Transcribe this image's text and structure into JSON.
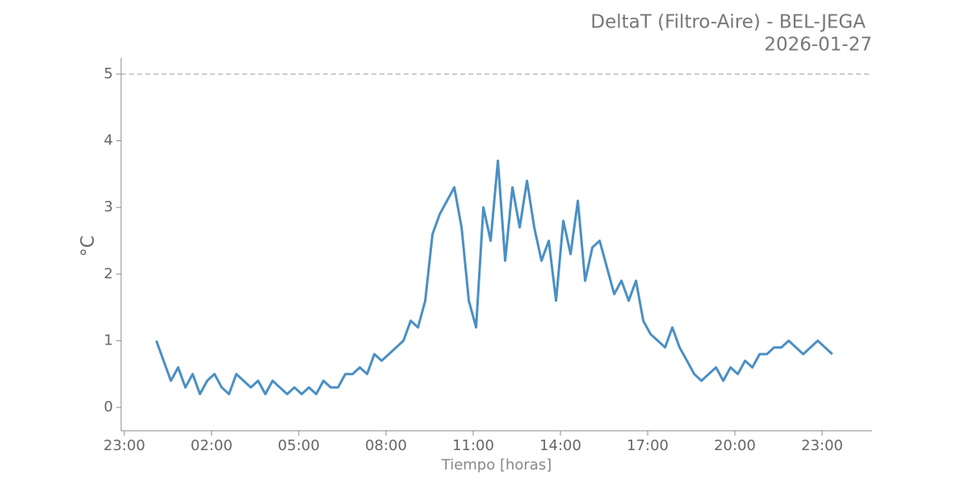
{
  "chart_data": {
    "type": "line",
    "title": "DeltaT (Filtro-Aire) - BEL-JEGA",
    "subtitle": "2026-01-27",
    "x_label": "Tiempo [horas]",
    "y_label": "°C",
    "color": "#4a8fc4",
    "reference_line": 5,
    "reference_color": "#bbbbbb",
    "x": [
      0.1,
      0.35,
      0.6,
      0.85,
      1.1,
      1.35,
      1.6,
      1.85,
      2.1,
      2.35,
      2.6,
      2.85,
      3.1,
      3.35,
      3.6,
      3.85,
      4.1,
      4.35,
      4.6,
      4.85,
      5.1,
      5.35,
      5.6,
      5.85,
      6.1,
      6.35,
      6.6,
      6.85,
      7.1,
      7.35,
      7.6,
      7.85,
      8.1,
      8.35,
      8.6,
      8.85,
      9.1,
      9.35,
      9.6,
      9.85,
      10.1,
      10.35,
      10.6,
      10.85,
      11.1,
      11.35,
      11.6,
      11.85,
      12.1,
      12.35,
      12.6,
      12.85,
      13.1,
      13.35,
      13.6,
      13.85,
      14.1,
      14.35,
      14.6,
      14.85,
      15.1,
      15.35,
      15.6,
      15.85,
      16.1,
      16.35,
      16.6,
      16.85,
      17.1,
      17.35,
      17.6,
      17.85,
      18.1,
      18.35,
      18.6,
      18.85,
      19.1,
      19.35,
      19.6,
      19.85,
      20.1,
      20.35,
      20.6,
      20.85,
      21.1,
      21.35,
      21.6,
      21.85,
      22.1,
      22.35,
      22.6,
      22.85,
      23.1,
      23.35
    ],
    "values": [
      1.0,
      0.7,
      0.4,
      0.6,
      0.3,
      0.5,
      0.2,
      0.4,
      0.5,
      0.3,
      0.2,
      0.5,
      0.4,
      0.3,
      0.4,
      0.2,
      0.4,
      0.3,
      0.2,
      0.3,
      0.2,
      0.3,
      0.2,
      0.4,
      0.3,
      0.3,
      0.5,
      0.5,
      0.6,
      0.5,
      0.8,
      0.7,
      0.8,
      0.9,
      1.0,
      1.3,
      1.2,
      1.6,
      2.6,
      2.9,
      3.1,
      3.3,
      2.7,
      1.6,
      1.2,
      3.0,
      2.5,
      3.7,
      2.2,
      3.3,
      2.7,
      3.4,
      2.7,
      2.2,
      2.5,
      1.6,
      2.8,
      2.3,
      3.1,
      1.9,
      2.4,
      2.5,
      2.1,
      1.7,
      1.9,
      1.6,
      1.9,
      1.3,
      1.1,
      1.0,
      0.9,
      1.2,
      0.9,
      0.7,
      0.5,
      0.4,
      0.5,
      0.6,
      0.4,
      0.6,
      0.5,
      0.7,
      0.6,
      0.8,
      0.8,
      0.9,
      0.9,
      1.0,
      0.9,
      0.8,
      0.9,
      1.0,
      0.9,
      0.8
    ],
    "xlim": [
      -1.11,
      24.72
    ],
    "xticks": [
      {
        "value": -1,
        "label": "23:00"
      },
      {
        "value": 2,
        "label": "02:00"
      },
      {
        "value": 5,
        "label": "05:00"
      },
      {
        "value": 8,
        "label": "08:00"
      },
      {
        "value": 11,
        "label": "11:00"
      },
      {
        "value": 14,
        "label": "14:00"
      },
      {
        "value": 17,
        "label": "17:00"
      },
      {
        "value": 20,
        "label": "20:00"
      },
      {
        "value": 23,
        "label": "23:00"
      }
    ],
    "ylim": [
      -0.35,
      5.24
    ],
    "yticks": [
      0,
      1,
      2,
      3,
      4,
      5
    ]
  }
}
